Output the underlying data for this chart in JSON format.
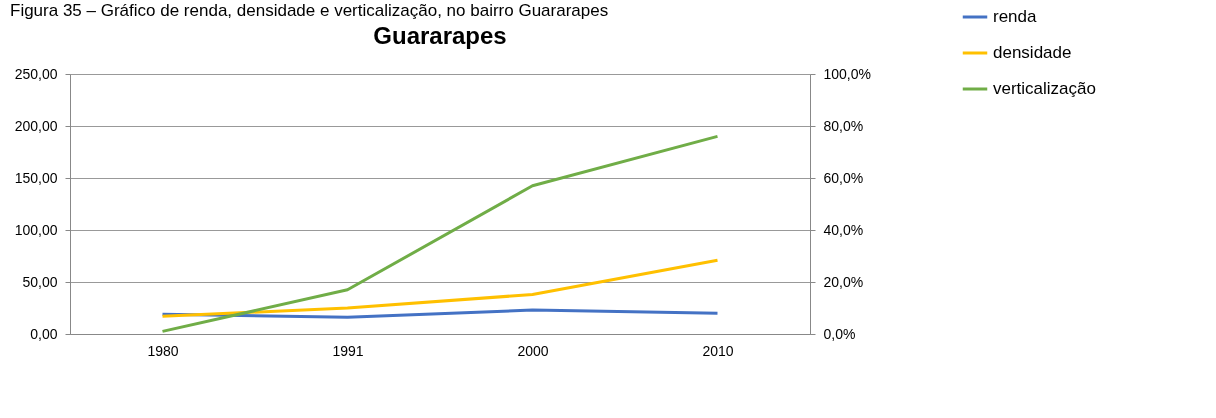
{
  "chart_data": {
    "type": "line",
    "title": "Guararapes",
    "annotations": [
      "Figura 35 – Gráfico de renda, densidade e verticalização, no bairro Guararapes"
    ],
    "categories": [
      "1980",
      "1991",
      "2000",
      "2010"
    ],
    "series": [
      {
        "name": "renda",
        "color": "#4472c4",
        "values": [
          19,
          16,
          23,
          20
        ]
      },
      {
        "name": "densidade",
        "color": "#ffc000",
        "values": [
          17,
          25,
          38,
          71
        ]
      },
      {
        "name": "verticalização",
        "color": "#70ad47",
        "values": [
          1,
          17,
          57,
          76
        ],
        "axis": "y2"
      }
    ],
    "ylim": [
      0,
      250
    ],
    "yticks": [
      {
        "value": 0,
        "label": "0,00"
      },
      {
        "value": 50,
        "label": "50,00"
      },
      {
        "value": 100,
        "label": "100,00"
      },
      {
        "value": 150,
        "label": "150,00"
      },
      {
        "value": 200,
        "label": "200,00"
      },
      {
        "value": 250,
        "label": "250,00"
      }
    ],
    "y2lim": [
      0,
      100
    ],
    "y2ticks": [
      {
        "value": 0,
        "label": "0,0%"
      },
      {
        "value": 20,
        "label": "20,0%"
      },
      {
        "value": 40,
        "label": "40,0%"
      },
      {
        "value": 60,
        "label": "60,0%"
      },
      {
        "value": 80,
        "label": "80,0%"
      },
      {
        "value": 100,
        "label": "100,0%"
      }
    ],
    "grid": "y",
    "legend": "right",
    "marker": "none",
    "line_style": "solid"
  }
}
